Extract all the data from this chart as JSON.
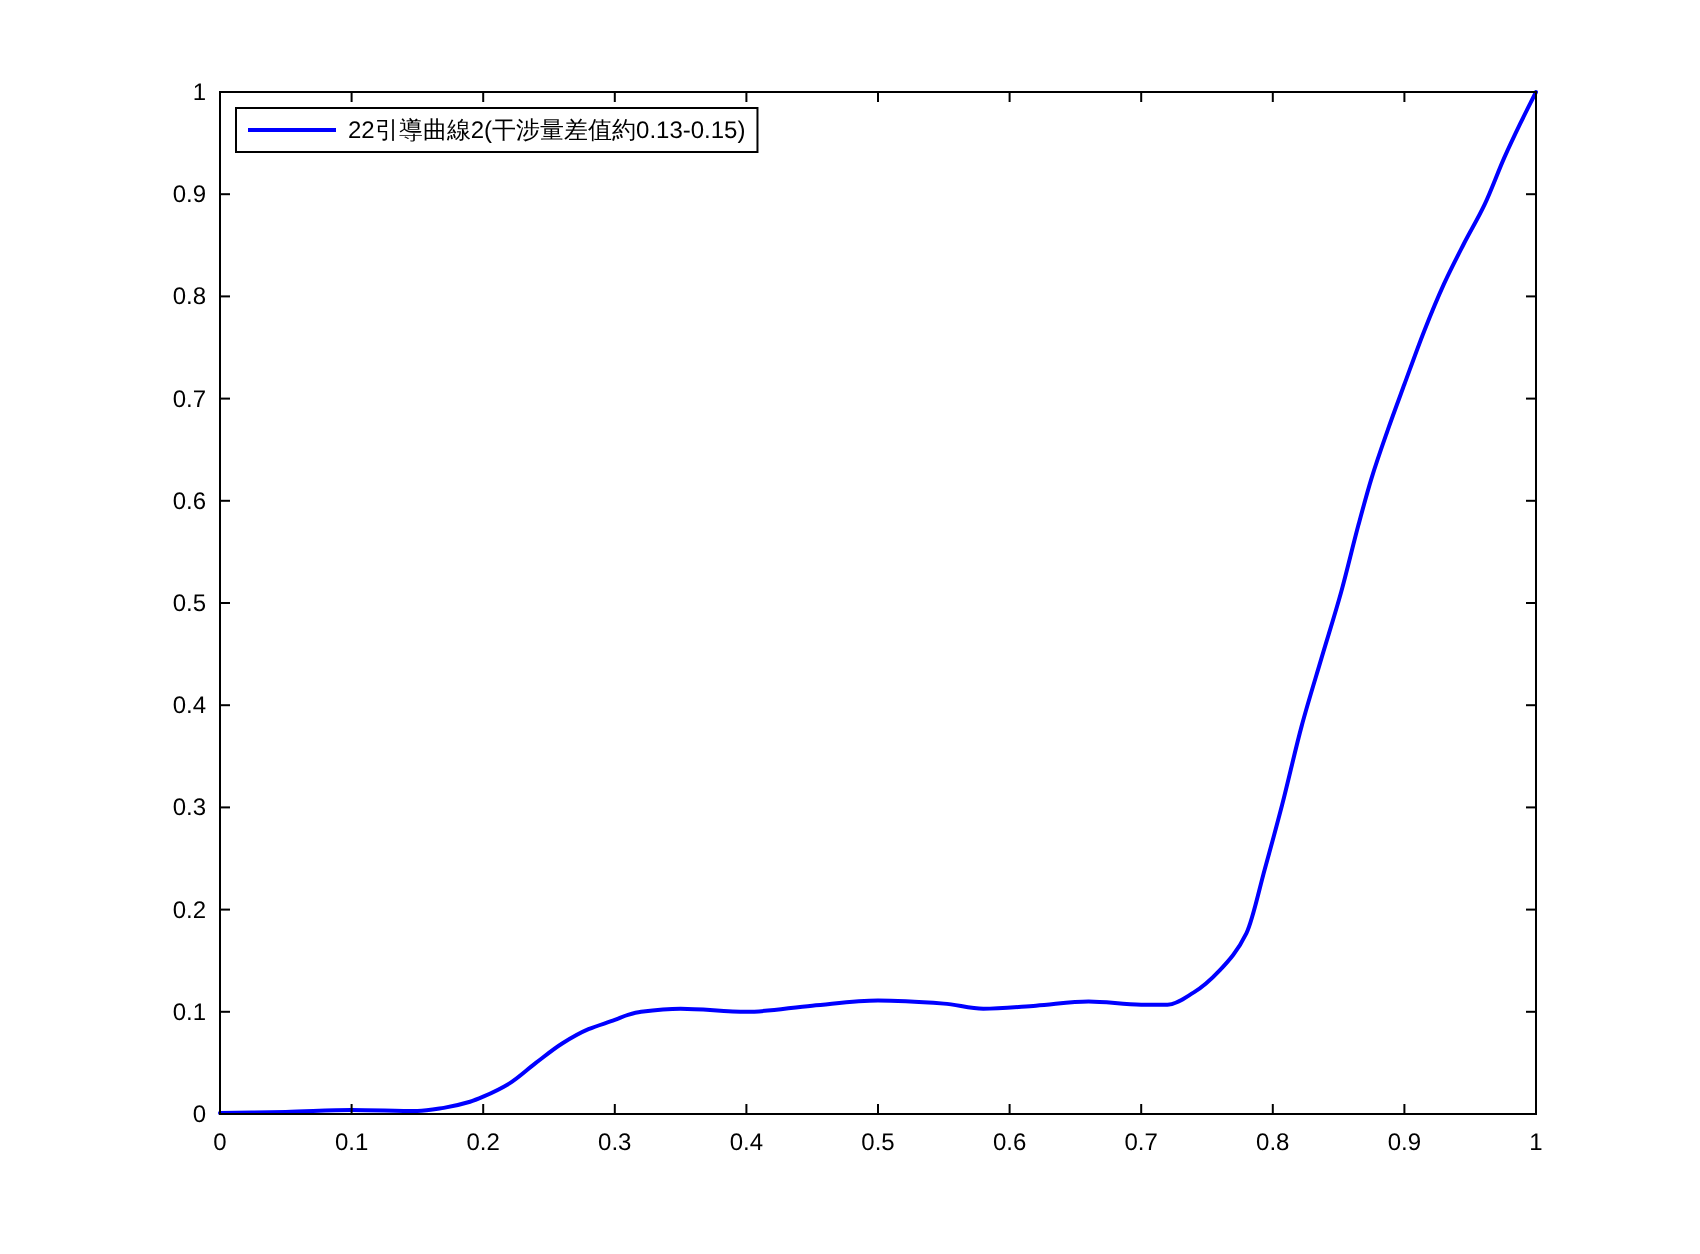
{
  "chart_data": {
    "type": "line",
    "x": [
      0,
      0.05,
      0.1,
      0.15,
      0.17,
      0.19,
      0.2,
      0.22,
      0.24,
      0.26,
      0.28,
      0.3,
      0.31,
      0.32,
      0.35,
      0.4,
      0.45,
      0.5,
      0.55,
      0.58,
      0.62,
      0.66,
      0.7,
      0.72,
      0.74,
      0.76,
      0.78,
      0.794,
      0.807,
      0.822,
      0.837,
      0.852,
      0.865,
      0.875,
      0.887,
      0.9,
      0.915,
      0.93,
      0.945,
      0.961,
      0.976,
      0.988,
      1.0
    ],
    "series": [
      {
        "name": "22引導曲線2(干涉量差值約0.13-0.15)",
        "color": "#0000ff",
        "values": [
          0.001,
          0.002,
          0.004,
          0.003,
          0.006,
          0.012,
          0.017,
          0.03,
          0.05,
          0.069,
          0.083,
          0.092,
          0.097,
          0.1,
          0.103,
          0.1,
          0.106,
          0.111,
          0.108,
          0.103,
          0.106,
          0.11,
          0.107,
          0.107,
          0.119,
          0.141,
          0.177,
          0.24,
          0.302,
          0.38,
          0.446,
          0.511,
          0.576,
          0.622,
          0.668,
          0.714,
          0.766,
          0.812,
          0.851,
          0.89,
          0.936,
          0.969,
          1.0
        ]
      }
    ],
    "xlim": [
      0,
      1
    ],
    "ylim": [
      0,
      1
    ],
    "xticks": [
      0,
      0.1,
      0.2,
      0.3,
      0.4,
      0.5,
      0.6,
      0.7,
      0.8,
      0.9,
      1
    ],
    "yticks": [
      0,
      0.1,
      0.2,
      0.3,
      0.4,
      0.5,
      0.6,
      0.7,
      0.8,
      0.9,
      1
    ],
    "legend": "top left",
    "line_style": "solid"
  }
}
